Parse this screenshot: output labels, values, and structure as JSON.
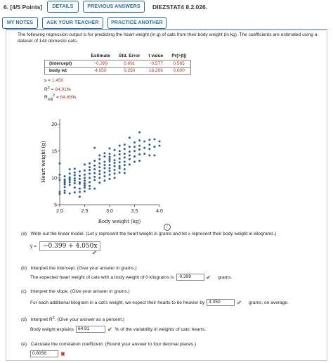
{
  "header": {
    "question_number": "6.  [4/5 Points]",
    "details_label": "DETAILS",
    "previous_answers_label": "PREVIOUS ANSWERS",
    "assignment_id": "DIEZSTAT4 8.2.026.",
    "my_notes_label": "MY NOTES",
    "ask_teacher_label": "ASK YOUR TEACHER",
    "practice_another_label": "PRACTICE ANOTHER"
  },
  "intro": "The following regression output is for predicting the heart weight (in g) of cats from their body weight (in kg). The coefficients are estimated using a dataset of 144 domestic cats.",
  "regression_table": {
    "headers": [
      "Estimate",
      "Std. Error",
      "t value",
      "Pr(>|t|)"
    ],
    "rows": [
      {
        "label": "(Intercept)",
        "values": [
          "−0.399",
          "0.691",
          "−0.577",
          "0.565"
        ]
      },
      {
        "label": "body wt",
        "values": [
          "4.050",
          "0.250",
          "16.206",
          "0.000"
        ]
      }
    ]
  },
  "stats": {
    "s_label": "s = ",
    "s_value": "1.450",
    "r2_label": "R",
    "r2_value": "64.91",
    "r2adj_label": "R",
    "r2adj_value": "64.66",
    "percent": "%"
  },
  "chart_data": {
    "type": "scatter",
    "xlabel": "Body weight (kg)",
    "ylabel": "Heart weight (g)",
    "xlim": [
      2.0,
      4.0
    ],
    "ylim": [
      5,
      21
    ],
    "xticks": [
      "2.0",
      "2.5",
      "3.0",
      "3.5",
      "4.0"
    ],
    "yticks": [
      "5",
      "10",
      "15",
      "20"
    ],
    "points": [
      [
        2.0,
        7.0
      ],
      [
        2.0,
        7.4
      ],
      [
        2.0,
        9.6
      ],
      [
        2.0,
        10.6
      ],
      [
        2.0,
        12.7
      ],
      [
        2.1,
        7.2
      ],
      [
        2.1,
        7.6
      ],
      [
        2.1,
        8.3
      ],
      [
        2.1,
        8.8
      ],
      [
        2.1,
        9.1
      ],
      [
        2.1,
        9.4
      ],
      [
        2.1,
        9.7
      ],
      [
        2.1,
        10.3
      ],
      [
        2.2,
        7.1
      ],
      [
        2.2,
        8.7
      ],
      [
        2.2,
        9.2
      ],
      [
        2.2,
        9.6
      ],
      [
        2.2,
        9.8
      ],
      [
        2.2,
        10.1
      ],
      [
        2.2,
        10.8
      ],
      [
        2.2,
        11.6
      ],
      [
        2.3,
        7.3
      ],
      [
        2.3,
        8.2
      ],
      [
        2.3,
        9.0
      ],
      [
        2.3,
        9.5
      ],
      [
        2.3,
        9.9
      ],
      [
        2.3,
        10.5
      ],
      [
        2.3,
        11.0
      ],
      [
        2.3,
        11.7
      ],
      [
        2.4,
        6.5
      ],
      [
        2.4,
        7.4
      ],
      [
        2.4,
        8.0
      ],
      [
        2.4,
        8.9
      ],
      [
        2.4,
        9.2
      ],
      [
        2.4,
        9.8
      ],
      [
        2.4,
        10.4
      ],
      [
        2.4,
        11.2
      ],
      [
        2.5,
        7.5
      ],
      [
        2.5,
        8.2
      ],
      [
        2.5,
        8.6
      ],
      [
        2.5,
        9.0
      ],
      [
        2.5,
        9.5
      ],
      [
        2.5,
        10.0
      ],
      [
        2.5,
        10.6
      ],
      [
        2.5,
        11.4
      ],
      [
        2.5,
        12.5
      ],
      [
        2.6,
        8.0
      ],
      [
        2.6,
        8.5
      ],
      [
        2.6,
        9.2
      ],
      [
        2.6,
        10.0
      ],
      [
        2.6,
        10.8
      ],
      [
        2.6,
        11.5
      ],
      [
        2.6,
        12.0
      ],
      [
        2.6,
        12.7
      ],
      [
        2.7,
        8.0
      ],
      [
        2.7,
        9.6
      ],
      [
        2.7,
        10.2
      ],
      [
        2.7,
        10.9
      ],
      [
        2.7,
        11.6
      ],
      [
        2.7,
        12.3
      ],
      [
        2.7,
        13.2
      ],
      [
        2.7,
        15.6
      ],
      [
        2.8,
        9.1
      ],
      [
        2.8,
        10.0
      ],
      [
        2.8,
        10.7
      ],
      [
        2.8,
        11.3
      ],
      [
        2.8,
        12.0
      ],
      [
        2.8,
        12.7
      ],
      [
        2.8,
        13.5
      ],
      [
        2.8,
        14.2
      ],
      [
        2.9,
        9.5
      ],
      [
        2.9,
        10.3
      ],
      [
        2.9,
        11.0
      ],
      [
        2.9,
        11.8
      ],
      [
        2.9,
        12.4
      ],
      [
        2.9,
        13.0
      ],
      [
        2.9,
        14.0
      ],
      [
        2.9,
        14.6
      ],
      [
        3.0,
        9.8
      ],
      [
        3.0,
        10.6
      ],
      [
        3.0,
        11.3
      ],
      [
        3.0,
        11.8
      ],
      [
        3.0,
        12.4
      ],
      [
        3.0,
        13.1
      ],
      [
        3.0,
        13.5
      ],
      [
        3.0,
        13.9
      ],
      [
        3.0,
        14.5
      ],
      [
        3.0,
        15.5
      ],
      [
        3.1,
        10.0
      ],
      [
        3.1,
        10.8
      ],
      [
        3.1,
        11.5
      ],
      [
        3.1,
        12.2
      ],
      [
        3.1,
        12.8
      ],
      [
        3.1,
        13.3
      ],
      [
        3.1,
        14.2
      ],
      [
        3.1,
        15.2
      ],
      [
        3.2,
        11.0
      ],
      [
        3.2,
        11.8
      ],
      [
        3.2,
        12.2
      ],
      [
        3.2,
        12.9
      ],
      [
        3.2,
        13.6
      ],
      [
        3.2,
        14.4
      ],
      [
        3.2,
        15.0
      ],
      [
        3.2,
        16.0
      ],
      [
        3.3,
        10.9
      ],
      [
        3.3,
        11.6
      ],
      [
        3.3,
        12.4
      ],
      [
        3.3,
        13.0
      ],
      [
        3.3,
        13.8
      ],
      [
        3.3,
        14.5
      ],
      [
        3.3,
        15.4
      ],
      [
        3.3,
        16.2
      ],
      [
        3.4,
        12.5
      ],
      [
        3.4,
        13.5
      ],
      [
        3.4,
        14.2
      ],
      [
        3.4,
        14.9
      ],
      [
        3.4,
        15.8
      ],
      [
        3.4,
        17.5
      ],
      [
        3.5,
        13.0
      ],
      [
        3.5,
        14.0
      ],
      [
        3.5,
        15.0
      ],
      [
        3.5,
        15.8
      ],
      [
        3.5,
        16.6
      ],
      [
        3.6,
        13.2
      ],
      [
        3.6,
        14.4
      ],
      [
        3.6,
        15.3
      ],
      [
        3.6,
        16.0
      ],
      [
        3.6,
        17.0
      ],
      [
        3.6,
        18.5
      ],
      [
        3.7,
        14.5
      ],
      [
        3.7,
        15.6
      ],
      [
        3.7,
        16.8
      ],
      [
        3.8,
        14.2
      ],
      [
        3.8,
        15.4
      ],
      [
        3.8,
        16.2
      ],
      [
        3.8,
        17.1
      ],
      [
        3.9,
        14.2
      ],
      [
        3.9,
        15.8
      ],
      [
        3.9,
        17.2
      ],
      [
        4.0,
        16.0
      ],
      [
        4.0,
        16.8
      ]
    ]
  },
  "parts": {
    "a": {
      "label": "(a)",
      "text": "Write out the linear model. (Let y represent the heart weight in grams and let x represent their body weight in kilograms.)",
      "yhat": "ŷ =",
      "answer": "−0.399 + 4.050x"
    },
    "b": {
      "label": "(b)",
      "text": "Interpret the intercept. (Give your answer in grams.)",
      "pre": "The expected heart weight of cats with a body weight of 0 kilograms is",
      "answer": "-0.399",
      "post": "grams."
    },
    "c": {
      "label": "(c)",
      "text": "Interpret the slope. (Give your answer in grams.)",
      "pre": "For each additional kilogram in a cat's weight, we expect their hearts to be heavier by",
      "answer": "4.050",
      "post": "grams, on average."
    },
    "d": {
      "label": "(d)",
      "text": "Interpret R",
      "text2": ". (Give your answer as a percent.)",
      "pre": "Body weight explains",
      "answer": "64.91",
      "post": "% of the variability in weights of cats' hearts."
    },
    "e": {
      "label": "(e)",
      "text": "Calculate the correlation coefficient. (Round your answer to four decimal places.)",
      "answer": "0.8056"
    }
  },
  "colors": {
    "accent": "#2a6ca3",
    "correct": "#3a9b3a",
    "incorrect": "#d03030",
    "value_red": "#c0392b"
  }
}
